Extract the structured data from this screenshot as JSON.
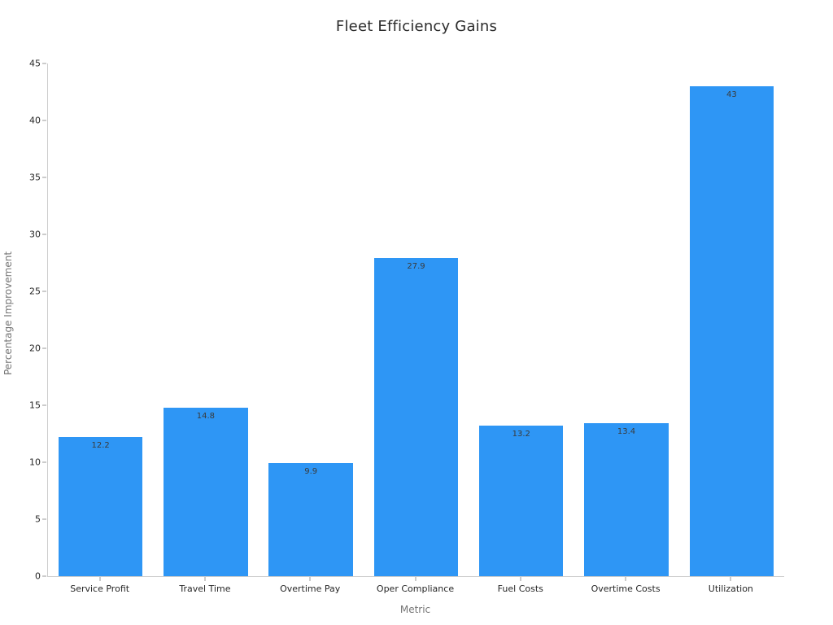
{
  "chart_data": {
    "type": "bar",
    "title": "Fleet Efficiency Gains",
    "xlabel": "Metric",
    "ylabel": "Percentage Improvement",
    "categories": [
      "Service Profit",
      "Travel Time",
      "Overtime Pay",
      "Oper Compliance",
      "Fuel Costs",
      "Overtime Costs",
      "Utilization"
    ],
    "values": [
      12.2,
      14.8,
      9.9,
      27.9,
      13.2,
      13.4,
      43
    ],
    "value_labels": [
      "12.2",
      "14.8",
      "9.9",
      "27.9",
      "13.2",
      "13.4",
      "43"
    ],
    "ylim": [
      0,
      45
    ],
    "yticks": [
      0,
      5,
      10,
      15,
      20,
      25,
      30,
      35,
      40,
      45
    ],
    "grid": false,
    "legend_position": "none",
    "bar_color": "#2e96f5",
    "value_label_color": "#3a3a3a",
    "tick_label_color": "#262626",
    "axis_title_color": "#757575",
    "axis_line_color": "#cccccc",
    "background_color": "#ffffff"
  }
}
